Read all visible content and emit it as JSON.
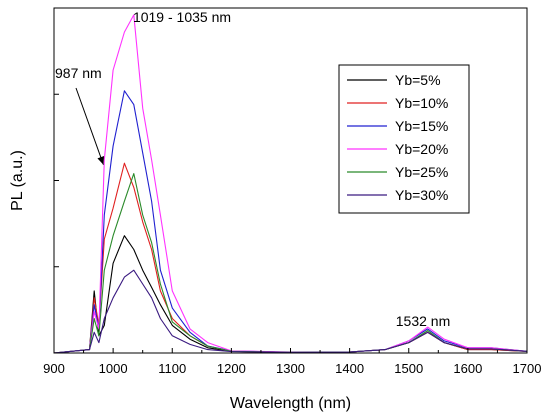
{
  "chart_data": {
    "type": "line",
    "xlabel": "Wavelength (nm)",
    "ylabel": "PL (a.u.)",
    "xlim": [
      900,
      1700
    ],
    "ylim": [
      0,
      1.0
    ],
    "x_ticks": [
      900,
      1000,
      1100,
      1200,
      1300,
      1400,
      1500,
      1600,
      1700
    ],
    "y_tick_labels_shown": false,
    "legend_position": "top-right",
    "annotations": [
      {
        "text": "1019 - 1035 nm",
        "x": 1035,
        "y": 0.98
      },
      {
        "text": "987 nm",
        "x": 987,
        "y": 0.54,
        "arrow": true
      },
      {
        "text": "1532 nm",
        "x": 1532,
        "y": 0.07
      }
    ],
    "x": [
      900,
      960,
      968,
      976,
      985,
      1000,
      1019,
      1035,
      1050,
      1065,
      1080,
      1100,
      1130,
      1160,
      1200,
      1300,
      1400,
      1460,
      1500,
      1532,
      1560,
      1600,
      1640,
      1700
    ],
    "series": [
      {
        "name": "Yb=5%",
        "color": "#000000",
        "values": [
          0.0,
          0.01,
          0.18,
          0.05,
          0.08,
          0.26,
          0.34,
          0.3,
          0.24,
          0.19,
          0.14,
          0.08,
          0.04,
          0.015,
          0.005,
          0.002,
          0.003,
          0.01,
          0.03,
          0.06,
          0.03,
          0.01,
          0.01,
          0.005
        ]
      },
      {
        "name": "Yb=10%",
        "color": "#e02020",
        "values": [
          0.0,
          0.01,
          0.16,
          0.08,
          0.33,
          0.42,
          0.55,
          0.48,
          0.38,
          0.3,
          0.18,
          0.1,
          0.05,
          0.02,
          0.005,
          0.002,
          0.003,
          0.01,
          0.03,
          0.06,
          0.03,
          0.01,
          0.01,
          0.005
        ]
      },
      {
        "name": "Yb=15%",
        "color": "#2020d0",
        "values": [
          0.0,
          0.01,
          0.14,
          0.07,
          0.4,
          0.6,
          0.76,
          0.72,
          0.58,
          0.44,
          0.24,
          0.13,
          0.06,
          0.02,
          0.006,
          0.002,
          0.003,
          0.01,
          0.035,
          0.07,
          0.035,
          0.015,
          0.015,
          0.005
        ]
      },
      {
        "name": "Yb=20%",
        "color": "#ff33ff",
        "values": [
          0.0,
          0.01,
          0.12,
          0.07,
          0.56,
          0.82,
          0.93,
          0.98,
          0.71,
          0.56,
          0.4,
          0.18,
          0.07,
          0.03,
          0.006,
          0.003,
          0.003,
          0.01,
          0.035,
          0.075,
          0.04,
          0.015,
          0.015,
          0.005
        ]
      },
      {
        "name": "Yb=25%",
        "color": "#2a8a2a",
        "values": [
          0.0,
          0.01,
          0.1,
          0.05,
          0.24,
          0.34,
          0.44,
          0.52,
          0.4,
          0.32,
          0.2,
          0.09,
          0.05,
          0.02,
          0.005,
          0.002,
          0.003,
          0.01,
          0.03,
          0.065,
          0.03,
          0.012,
          0.012,
          0.005
        ]
      },
      {
        "name": "Yb=30%",
        "color": "#3a1a80",
        "values": [
          0.0,
          0.01,
          0.06,
          0.03,
          0.1,
          0.16,
          0.22,
          0.24,
          0.2,
          0.16,
          0.1,
          0.05,
          0.025,
          0.01,
          0.004,
          0.002,
          0.003,
          0.01,
          0.03,
          0.06,
          0.03,
          0.012,
          0.012,
          0.005
        ]
      }
    ]
  }
}
